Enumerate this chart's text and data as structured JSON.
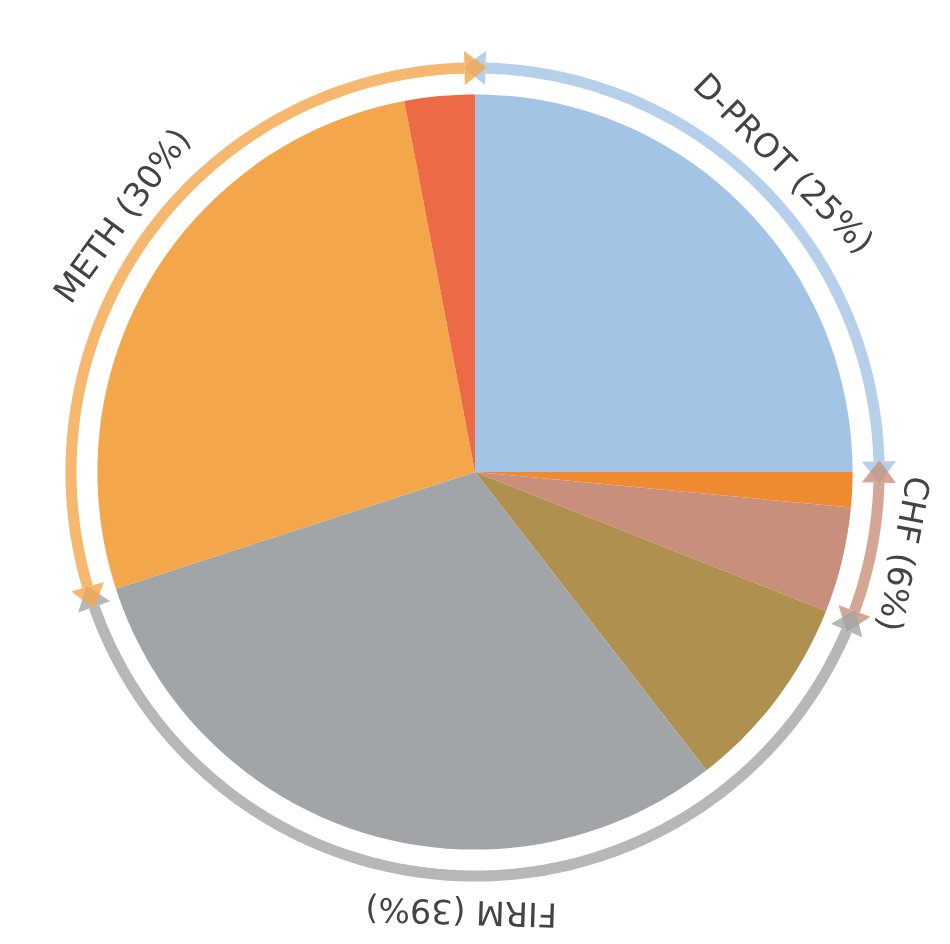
{
  "chart_data": {
    "type": "pie",
    "categories": [
      null,
      null,
      null,
      null,
      null,
      null,
      null
    ],
    "values": [
      25,
      1.5,
      4.5,
      8.5,
      30.5,
      27,
      3
    ],
    "colors": [
      "#a4c4e6",
      "#f08a30",
      "#c8907c",
      "#b0904e",
      "#a2a5a8",
      "#f4a64a",
      "#ec6a46"
    ],
    "annotations": [
      "D-PROT (25%)",
      "CHF (6%)",
      "FIRM (39%)",
      "METH (30%)"
    ]
  }
}
